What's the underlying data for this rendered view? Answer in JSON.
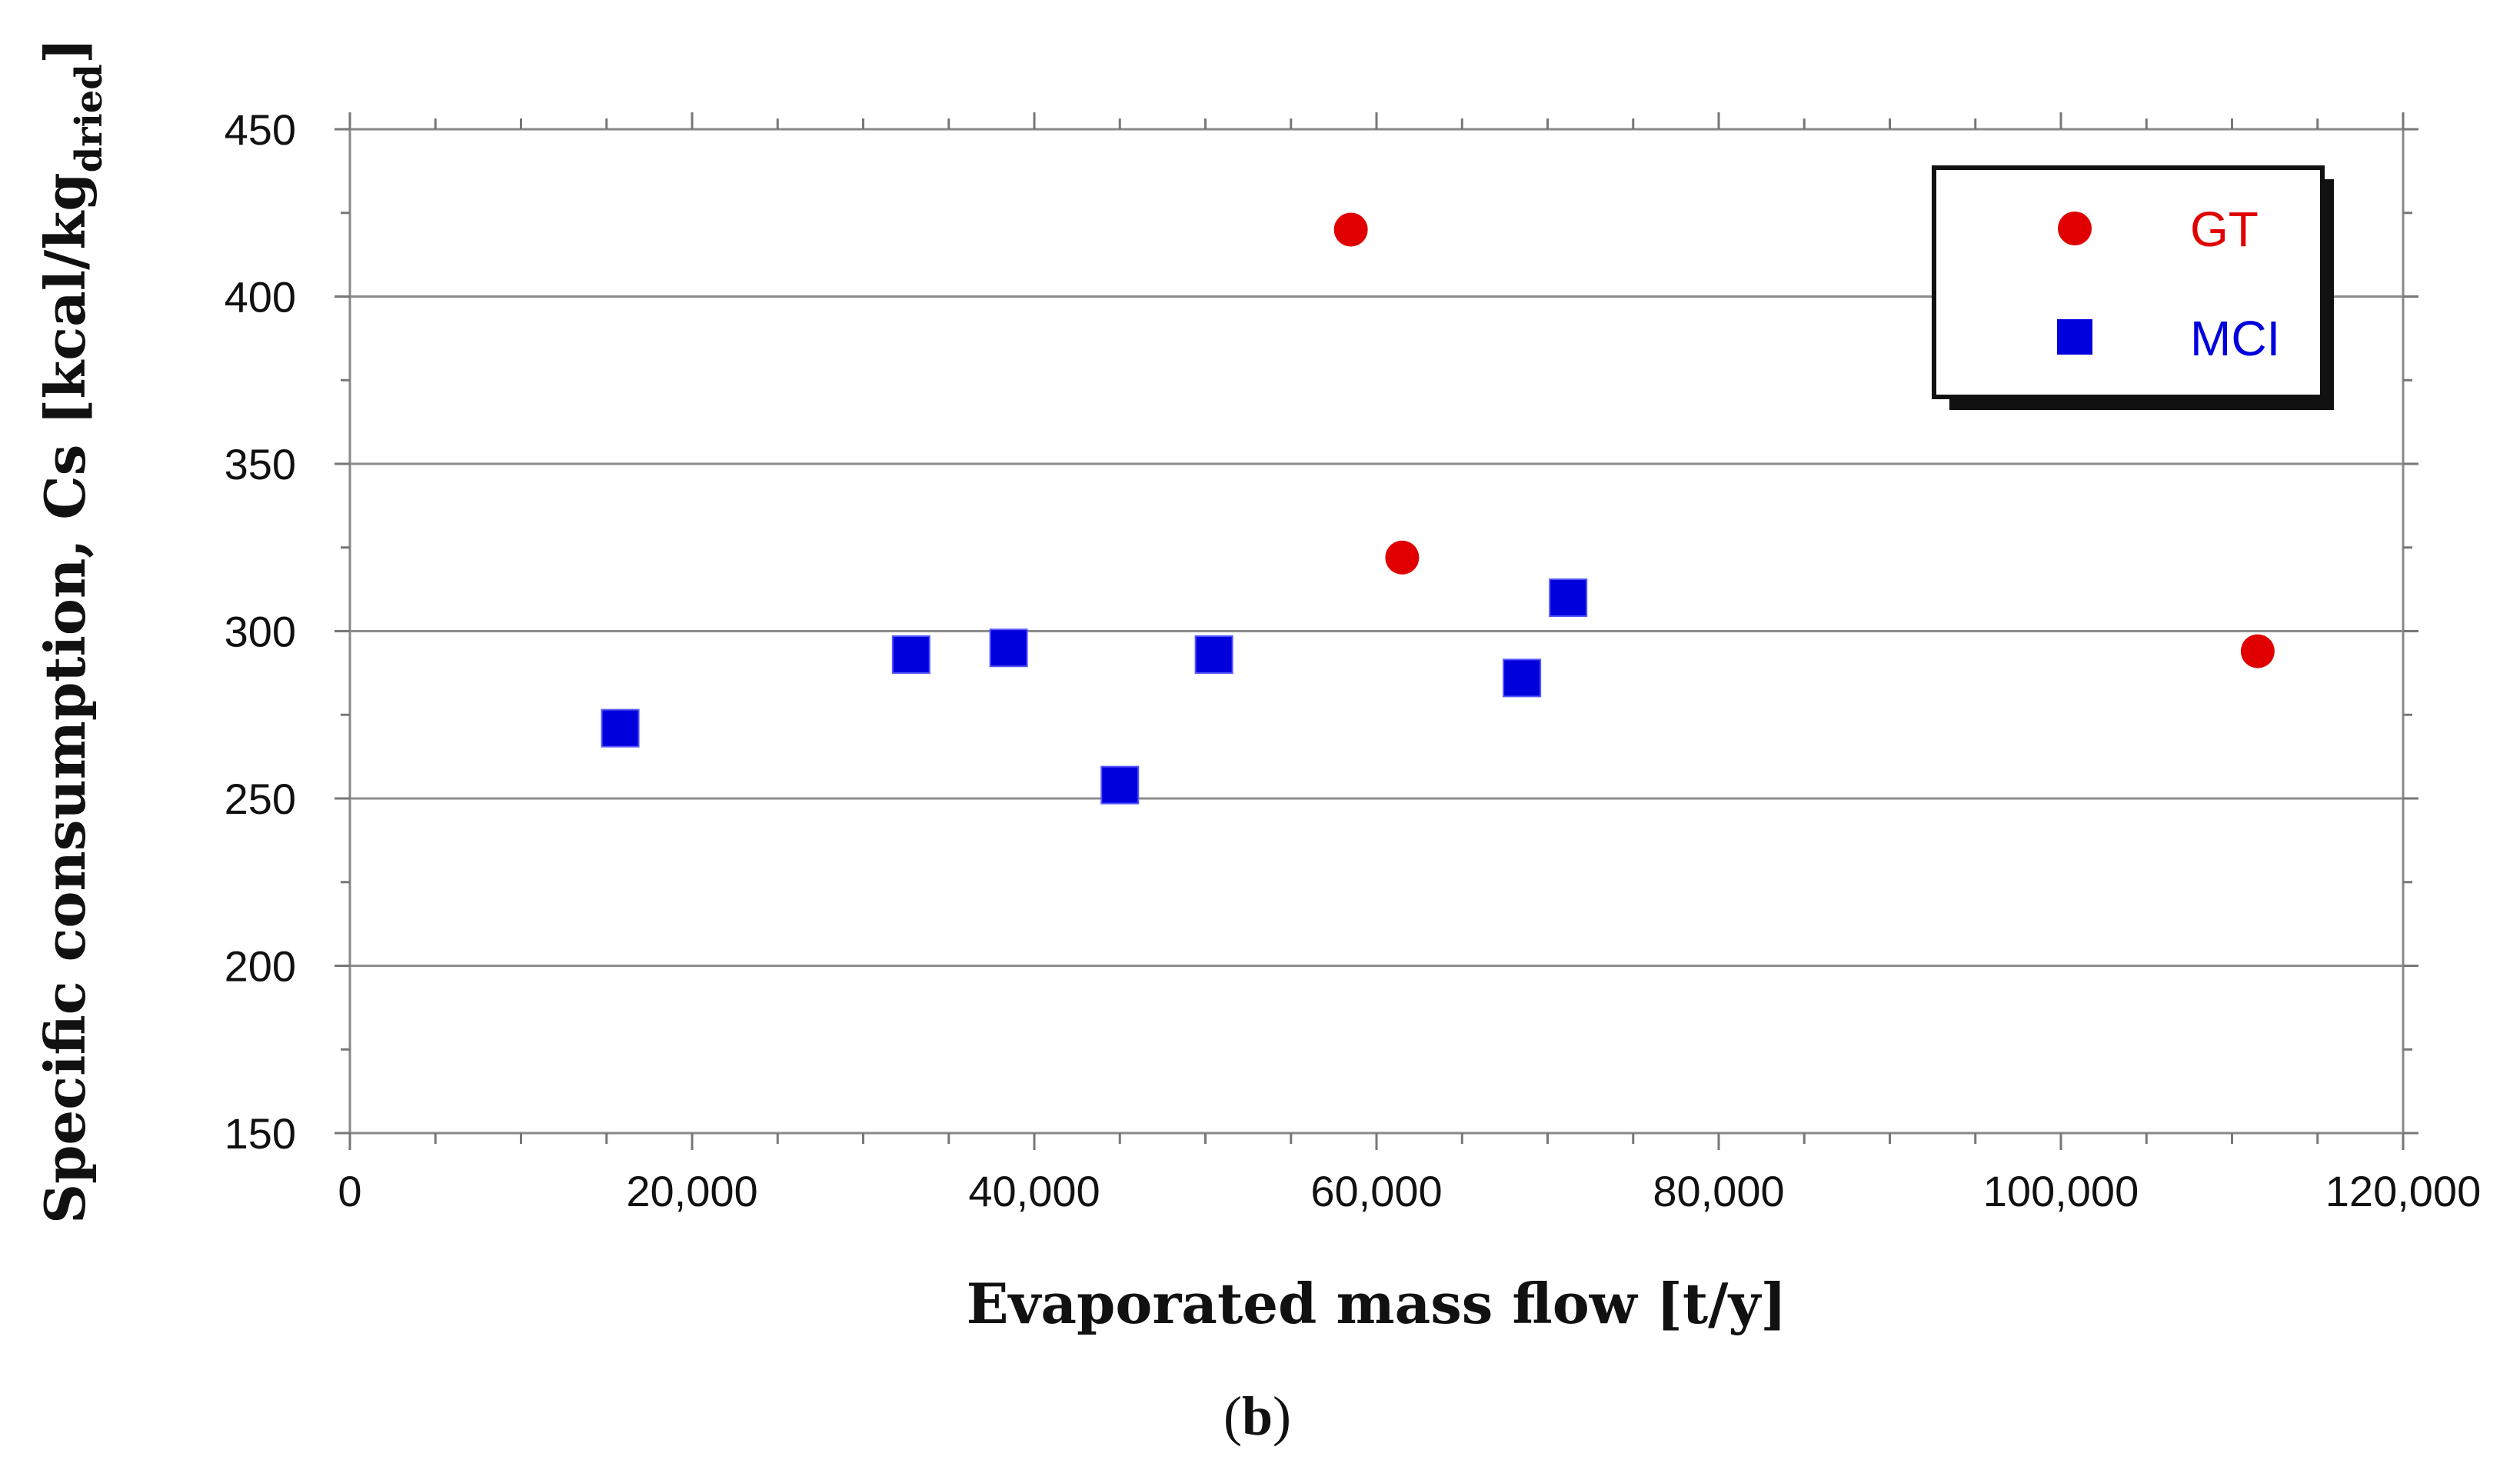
{
  "chart_data": {
    "type": "scatter",
    "title": "",
    "xlabel": "Evaporated mass flow [t/y]",
    "ylabel": "Specific consumption, Cs [kcal/kg",
    "ylabel_subscript": "dried",
    "ylabel_close": "]",
    "caption_open": "(",
    "caption_letter": "b",
    "caption_close": ")",
    "xlim": [
      0,
      120000
    ],
    "ylim": [
      150,
      450
    ],
    "x_ticks": [
      0,
      20000,
      40000,
      60000,
      80000,
      100000,
      120000
    ],
    "x_tick_labels": [
      "0",
      "20,000",
      "40,000",
      "60,000",
      "80,000",
      "100,000",
      "120,000"
    ],
    "y_ticks": [
      150,
      200,
      250,
      300,
      350,
      400,
      450
    ],
    "y_tick_labels": [
      "150",
      "200",
      "250",
      "300",
      "350",
      "400",
      "450"
    ],
    "grid": "horizontal",
    "legend_position": "top-right",
    "series": [
      {
        "name": "GT",
        "marker": "circle",
        "color": "#e00000",
        "points": [
          [
            58500,
            420
          ],
          [
            61500,
            322
          ],
          [
            111500,
            294
          ]
        ]
      },
      {
        "name": "MCI",
        "marker": "square",
        "color": "#0000dd",
        "points": [
          [
            15800,
            271
          ],
          [
            32800,
            293
          ],
          [
            38500,
            295
          ],
          [
            45000,
            254
          ],
          [
            50500,
            293
          ],
          [
            68500,
            286
          ],
          [
            71200,
            310
          ]
        ]
      }
    ]
  }
}
